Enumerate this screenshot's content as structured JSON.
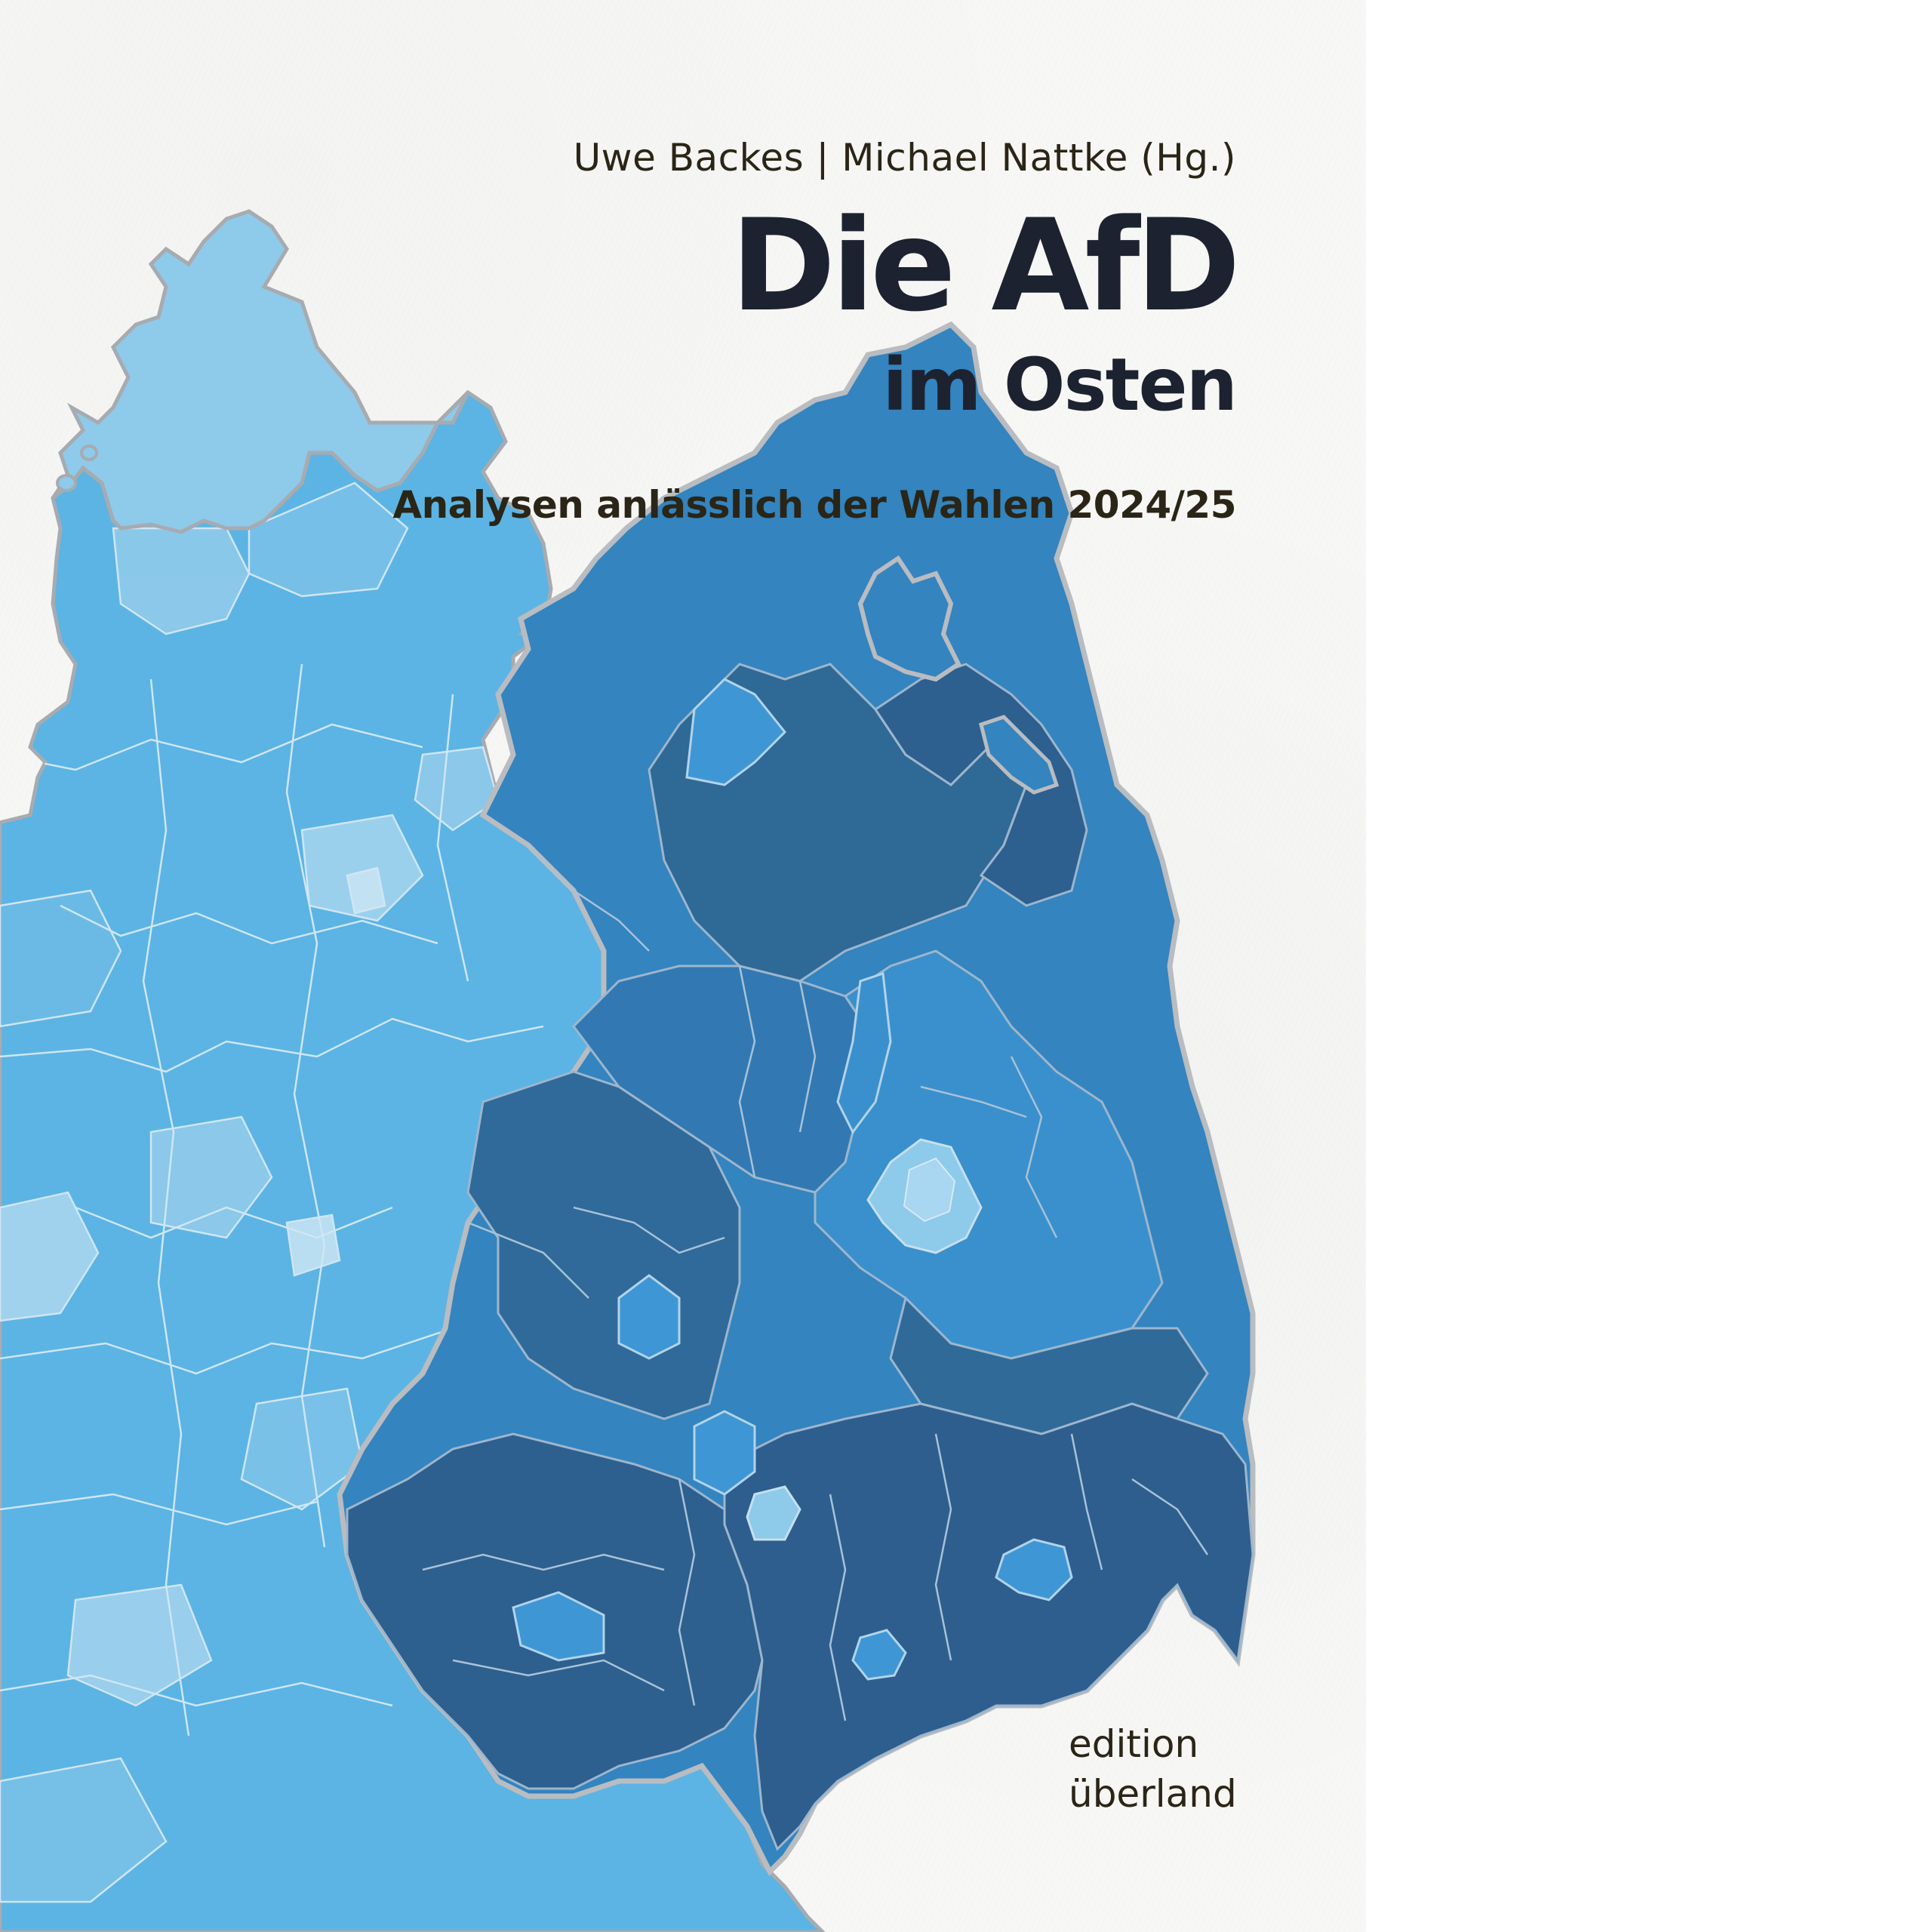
{
  "cover": {
    "editors": "Uwe Backes | Michael Nattke (Hg.)",
    "title_line1": "Die AfD",
    "title_line2": "im Osten",
    "subtitle": "Analysen anlässlich der Wahlen 2024/25",
    "publisher_line1": "edition",
    "publisher_line2": "überland"
  },
  "colors": {
    "background": "#f7f7f5",
    "text_dark": "#1d2230",
    "west_light": "#8ecaea",
    "west_mid": "#5bb4e4",
    "east_mid": "#3384bf",
    "east_dark": "#2d5f8f",
    "border": "#b9bcc0"
  }
}
